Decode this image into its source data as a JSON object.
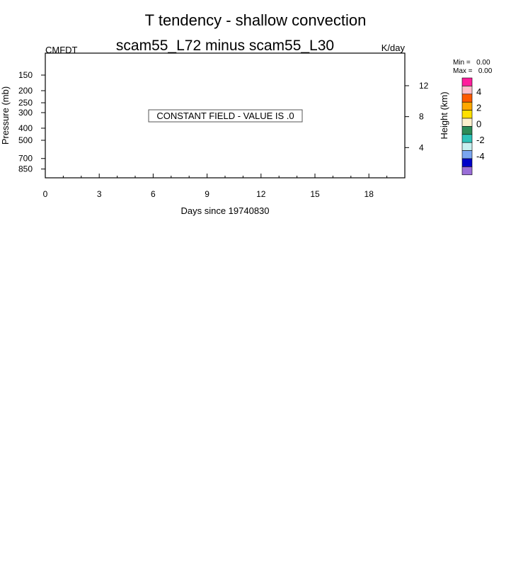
{
  "chart_data": {
    "type": "heatmap",
    "title": "T tendency - shallow convection",
    "subtitle": "scam55_L72 minus scam55_L30",
    "left_label": "CMFDT",
    "units_label": "K/day",
    "xlabel": "Days since 19740830",
    "ylabel": "Pressure (mb)",
    "ylabel_right": "Height (km)",
    "x_ticks": [
      "0",
      "3",
      "6",
      "9",
      "12",
      "15",
      "18"
    ],
    "x_tick_values": [
      0,
      3,
      6,
      9,
      12,
      15,
      18
    ],
    "xlim": [
      0,
      20
    ],
    "y_ticks": [
      "150",
      "200",
      "250",
      "300",
      "400",
      "500",
      "700",
      "850"
    ],
    "y_tick_values": [
      150,
      200,
      250,
      300,
      400,
      500,
      700,
      850
    ],
    "ylim": [
      100,
      1000
    ],
    "y_scale": "log",
    "y_inverted": true,
    "right_ticks": [
      "12",
      "8",
      "4"
    ],
    "right_tick_values": [
      12,
      8,
      4
    ],
    "message": "CONSTANT FIELD - VALUE IS .0",
    "min_label": "Min =   0.00",
    "max_label": "Max =   0.00",
    "colorbar": {
      "colors": [
        "#ff1e9c",
        "#ffc0cb",
        "#ff5a00",
        "#ffa800",
        "#ffe000",
        "#fff0cc",
        "#2e8b57",
        "#2ec3b8",
        "#c6f0f0",
        "#7aa6f0",
        "#0000c8",
        "#9a6ed8"
      ],
      "labels": [
        "4",
        "2",
        "0",
        "-2",
        "-4"
      ],
      "label_values": [
        4,
        2,
        0,
        -2,
        -4
      ]
    }
  }
}
